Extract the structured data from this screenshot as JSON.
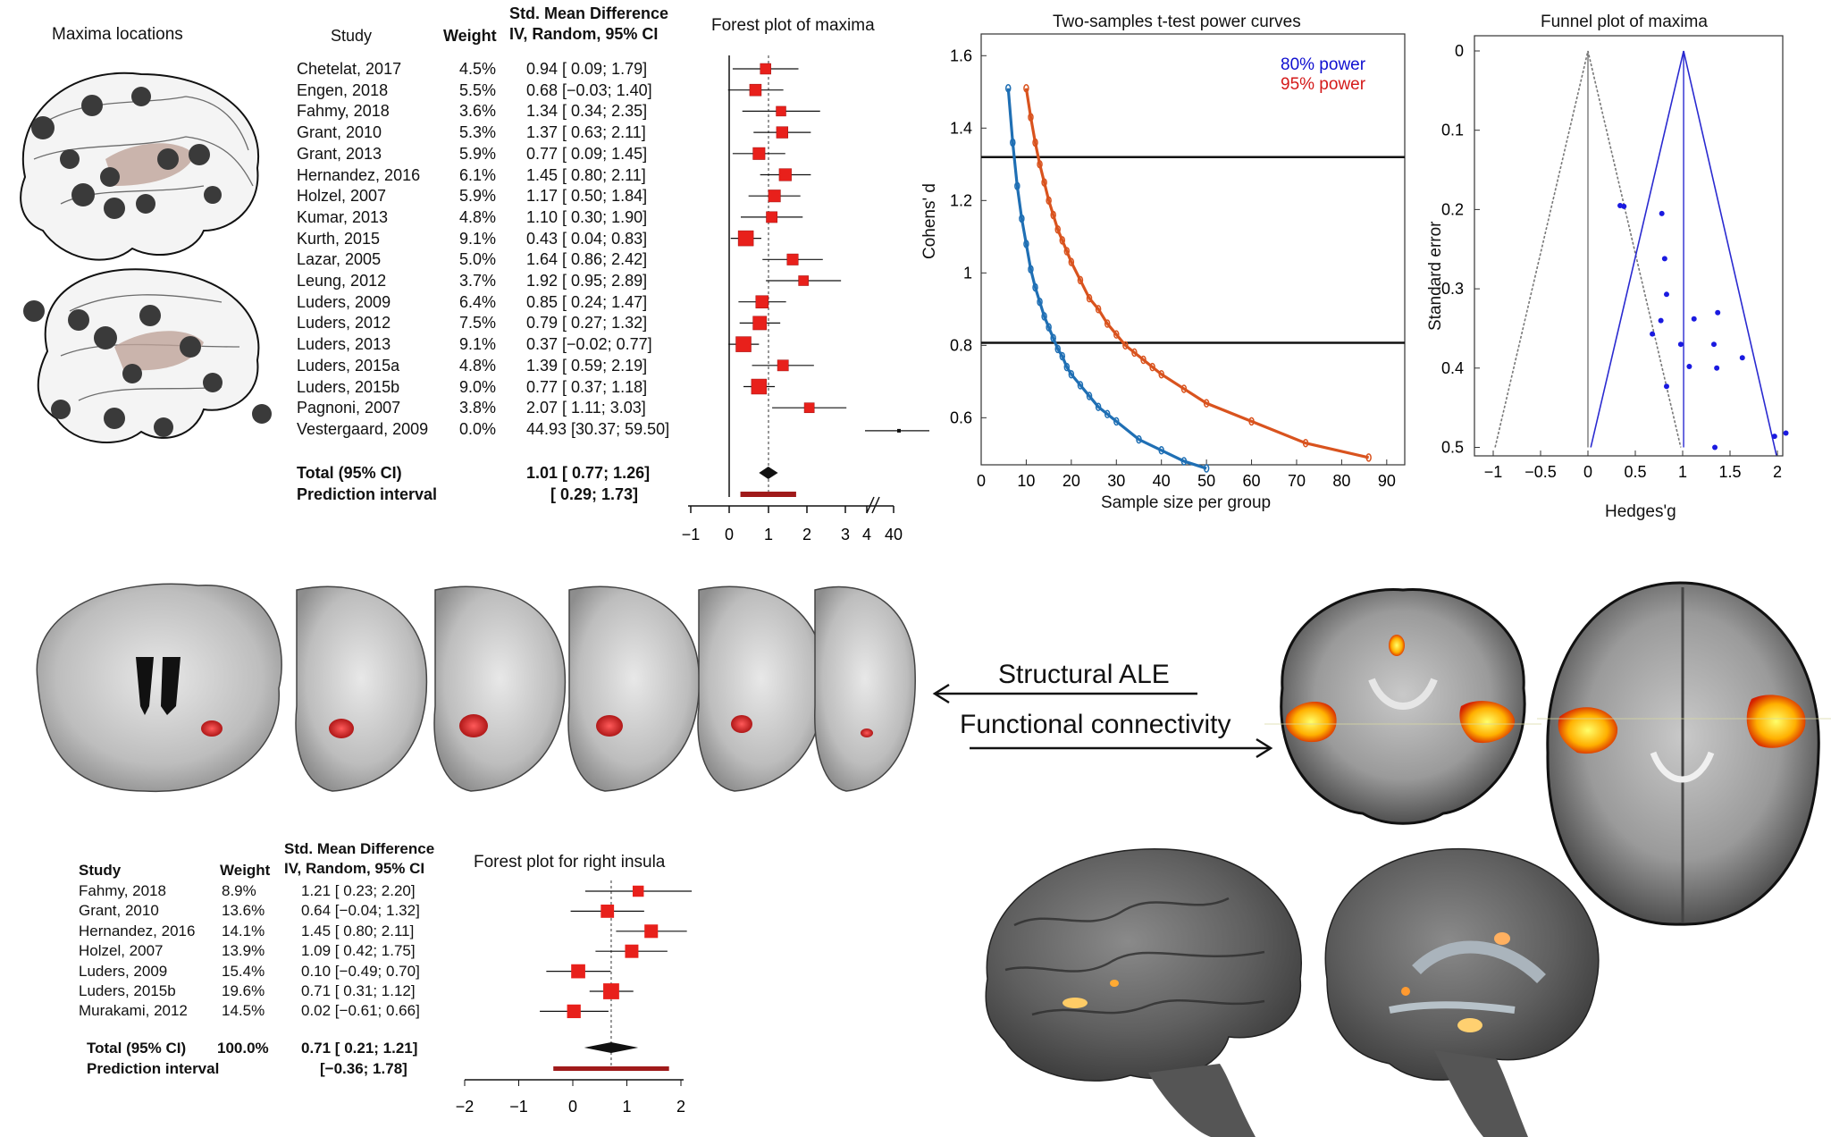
{
  "maxima_panel": {
    "title": "Maxima locations"
  },
  "forest1": {
    "title": "Forest plot of maxima",
    "headers": {
      "study": "Study",
      "weight": "Weight",
      "smd1": "Std. Mean Difference",
      "smd2": "IV, Random, 95% CI"
    },
    "rows": [
      {
        "study": "Chetelat, 2017",
        "weight": "4.5%",
        "ci": "0.94 [ 0.09; 1.79]"
      },
      {
        "study": "Engen, 2018",
        "weight": "5.5%",
        "ci": "0.68 [−0.03; 1.40]"
      },
      {
        "study": "Fahmy, 2018",
        "weight": "3.6%",
        "ci": "1.34 [ 0.34; 2.35]"
      },
      {
        "study": "Grant, 2010",
        "weight": "5.3%",
        "ci": "1.37 [ 0.63; 2.11]"
      },
      {
        "study": "Grant, 2013",
        "weight": "5.9%",
        "ci": "0.77 [ 0.09; 1.45]"
      },
      {
        "study": "Hernandez, 2016",
        "weight": "6.1%",
        "ci": "1.45 [ 0.80; 2.11]"
      },
      {
        "study": "Holzel, 2007",
        "weight": "5.9%",
        "ci": "1.17 [ 0.50; 1.84]"
      },
      {
        "study": "Kumar, 2013",
        "weight": "4.8%",
        "ci": "1.10 [ 0.30; 1.90]"
      },
      {
        "study": "Kurth, 2015",
        "weight": "9.1%",
        "ci": "0.43 [ 0.04; 0.83]"
      },
      {
        "study": "Lazar, 2005",
        "weight": "5.0%",
        "ci": "1.64 [ 0.86; 2.42]"
      },
      {
        "study": "Leung, 2012",
        "weight": "3.7%",
        "ci": "1.92 [ 0.95; 2.89]"
      },
      {
        "study": "Luders, 2009",
        "weight": "6.4%",
        "ci": "0.85 [ 0.24; 1.47]"
      },
      {
        "study": "Luders, 2012",
        "weight": "7.5%",
        "ci": "0.79 [ 0.27; 1.32]"
      },
      {
        "study": "Luders, 2013",
        "weight": "9.1%",
        "ci": "0.37 [−0.02; 0.77]"
      },
      {
        "study": "Luders, 2015a",
        "weight": "4.8%",
        "ci": "1.39 [ 0.59; 2.19]"
      },
      {
        "study": "Luders, 2015b",
        "weight": "9.0%",
        "ci": "0.77 [ 0.37; 1.18]"
      },
      {
        "study": "Pagnoni, 2007",
        "weight": "3.8%",
        "ci": "2.07 [ 1.11; 3.03]"
      },
      {
        "study": "Vestergaard, 2009",
        "weight": "0.0%",
        "ci": "44.93 [30.37; 59.50]"
      }
    ],
    "total_label": "Total (95% CI)",
    "total_ci": "1.01 [ 0.77; 1.26]",
    "pi_label": "Prediction interval",
    "pi_ci": "[ 0.29; 1.73]",
    "ticks": [
      "−1",
      "0",
      "1",
      "2",
      "3",
      "4",
      "40"
    ]
  },
  "power": {
    "title": "Two-samples t-test power curves",
    "xlabel": "Sample size per group",
    "ylabel": "Cohens' d",
    "legend80": "80% power",
    "legend95": "95% power",
    "xticks": [
      "0",
      "10",
      "20",
      "30",
      "40",
      "50",
      "60",
      "70",
      "80",
      "90"
    ],
    "yticks": [
      "0.6",
      "0.8",
      "1",
      "1.2",
      "1.4",
      "1.6"
    ]
  },
  "funnel": {
    "title": "Funnel plot of maxima",
    "xlabel": "Hedges'g",
    "ylabel": "Standard error",
    "xticks": [
      "−1",
      "−0.5",
      "0",
      "0.5",
      "1",
      "1.5",
      "2"
    ],
    "yticks": [
      "0",
      "0.1",
      "0.2",
      "0.3",
      "0.4",
      "0.5"
    ]
  },
  "arrows": {
    "structural": "Structural ALE",
    "functional": "Functional connectivity"
  },
  "forest2": {
    "title": "Forest plot for right insula",
    "headers": {
      "study": "Study",
      "weight": "Weight",
      "smd1": "Std. Mean Difference",
      "smd2": "IV, Random, 95% CI"
    },
    "rows": [
      {
        "study": "Fahmy, 2018",
        "weight": "8.9%",
        "ci": "1.21 [ 0.23; 2.20]"
      },
      {
        "study": "Grant, 2010",
        "weight": "13.6%",
        "ci": "0.64 [−0.04; 1.32]"
      },
      {
        "study": "Hernandez, 2016",
        "weight": "14.1%",
        "ci": "1.45 [ 0.80; 2.11]"
      },
      {
        "study": "Holzel, 2007",
        "weight": "13.9%",
        "ci": "1.09 [ 0.42; 1.75]"
      },
      {
        "study": "Luders, 2009",
        "weight": "15.4%",
        "ci": "0.10 [−0.49; 0.70]"
      },
      {
        "study": "Luders, 2015b",
        "weight": "19.6%",
        "ci": "0.71 [ 0.31; 1.12]"
      },
      {
        "study": "Murakami, 2012",
        "weight": "14.5%",
        "ci": "0.02 [−0.61; 0.66]"
      }
    ],
    "total_label": "Total (95% CI)",
    "total_weight": "100.0%",
    "total_ci": "0.71 [ 0.21; 1.21]",
    "pi_label": "Prediction interval",
    "pi_ci": "[−0.36; 1.78]",
    "ticks": [
      "−2",
      "−1",
      "0",
      "1",
      "2"
    ]
  },
  "chart_data": [
    {
      "type": "forest",
      "title": "Forest plot of maxima",
      "studies": [
        "Chetelat, 2017",
        "Engen, 2018",
        "Fahmy, 2018",
        "Grant, 2010",
        "Grant, 2013",
        "Hernandez, 2016",
        "Holzel, 2007",
        "Kumar, 2013",
        "Kurth, 2015",
        "Lazar, 2005",
        "Leung, 2012",
        "Luders, 2009",
        "Luders, 2012",
        "Luders, 2013",
        "Luders, 2015a",
        "Luders, 2015b",
        "Pagnoni, 2007",
        "Vestergaard, 2009"
      ],
      "estimate": [
        0.94,
        0.68,
        1.34,
        1.37,
        0.77,
        1.45,
        1.17,
        1.1,
        0.43,
        1.64,
        1.92,
        0.85,
        0.79,
        0.37,
        1.39,
        0.77,
        2.07,
        44.93
      ],
      "lower": [
        0.09,
        -0.03,
        0.34,
        0.63,
        0.09,
        0.8,
        0.5,
        0.3,
        0.04,
        0.86,
        0.95,
        0.24,
        0.27,
        -0.02,
        0.59,
        0.37,
        1.11,
        30.37
      ],
      "upper": [
        1.79,
        1.4,
        2.35,
        2.11,
        1.45,
        2.11,
        1.84,
        1.9,
        0.83,
        2.42,
        2.89,
        1.47,
        1.32,
        0.77,
        2.19,
        1.18,
        3.03,
        59.5
      ],
      "weight": [
        4.5,
        5.5,
        3.6,
        5.3,
        5.9,
        6.1,
        5.9,
        4.8,
        9.1,
        5.0,
        3.7,
        6.4,
        7.5,
        9.1,
        4.8,
        9.0,
        3.8,
        0.0
      ],
      "total": {
        "estimate": 1.01,
        "lower": 0.77,
        "upper": 1.26
      },
      "prediction_interval": [
        0.29,
        1.73
      ]
    },
    {
      "type": "line",
      "title": "Two-samples t-test power curves",
      "xlabel": "Sample size per group",
      "ylabel": "Cohens' d",
      "xlim": [
        0,
        94
      ],
      "ylim": [
        0.47,
        1.66
      ],
      "hlines": [
        1.32,
        0.807
      ],
      "series": [
        {
          "name": "80% power",
          "color": "#1f6fb4",
          "x": [
            6,
            7,
            8,
            9,
            10,
            11,
            12,
            13,
            14,
            15,
            16,
            17,
            18,
            19,
            20,
            22,
            24,
            26,
            28,
            30,
            35,
            40,
            45,
            50
          ],
          "y": [
            1.51,
            1.36,
            1.24,
            1.15,
            1.08,
            1.01,
            0.96,
            0.92,
            0.88,
            0.85,
            0.82,
            0.79,
            0.77,
            0.74,
            0.72,
            0.69,
            0.66,
            0.63,
            0.61,
            0.59,
            0.54,
            0.51,
            0.48,
            0.46
          ]
        },
        {
          "name": "95% power",
          "color": "#d9531e",
          "x": [
            10,
            11,
            12,
            13,
            14,
            15,
            16,
            17,
            18,
            19,
            20,
            22,
            24,
            26,
            28,
            30,
            32,
            34,
            36,
            38,
            40,
            45,
            50,
            60,
            72,
            86
          ],
          "y": [
            1.51,
            1.43,
            1.36,
            1.3,
            1.25,
            1.2,
            1.16,
            1.12,
            1.09,
            1.06,
            1.03,
            0.98,
            0.93,
            0.9,
            0.86,
            0.83,
            0.8,
            0.78,
            0.76,
            0.74,
            0.72,
            0.68,
            0.64,
            0.59,
            0.53,
            0.49
          ]
        }
      ]
    },
    {
      "type": "scatter",
      "title": "Funnel plot of maxima",
      "xlabel": "Hedges'g",
      "ylabel": "Standard error",
      "xlim": [
        -1.1,
        2.2
      ],
      "ylim": [
        0,
        0.51
      ],
      "y_reversed": true,
      "points": [
        {
          "x": 0.34,
          "y": 0.195
        },
        {
          "x": 0.38,
          "y": 0.196
        },
        {
          "x": 0.78,
          "y": 0.205
        },
        {
          "x": 0.81,
          "y": 0.262
        },
        {
          "x": 0.83,
          "y": 0.307
        },
        {
          "x": 0.77,
          "y": 0.34
        },
        {
          "x": 0.68,
          "y": 0.357
        },
        {
          "x": 1.12,
          "y": 0.338
        },
        {
          "x": 1.37,
          "y": 0.33
        },
        {
          "x": 1.33,
          "y": 0.37
        },
        {
          "x": 0.98,
          "y": 0.37
        },
        {
          "x": 1.63,
          "y": 0.387
        },
        {
          "x": 1.07,
          "y": 0.398
        },
        {
          "x": 1.36,
          "y": 0.4
        },
        {
          "x": 0.83,
          "y": 0.423
        },
        {
          "x": 1.97,
          "y": 0.486
        },
        {
          "x": 2.09,
          "y": 0.482
        },
        {
          "x": 1.34,
          "y": 0.5
        }
      ],
      "funnel_centers": [
        0,
        1.01
      ]
    },
    {
      "type": "forest",
      "title": "Forest plot for right insula",
      "studies": [
        "Fahmy, 2018",
        "Grant, 2010",
        "Hernandez, 2016",
        "Holzel, 2007",
        "Luders, 2009",
        "Luders, 2015b",
        "Murakami, 2012"
      ],
      "estimate": [
        1.21,
        0.64,
        1.45,
        1.09,
        0.1,
        0.71,
        0.02
      ],
      "lower": [
        0.23,
        -0.04,
        0.8,
        0.42,
        -0.49,
        0.31,
        -0.61
      ],
      "upper": [
        2.2,
        1.32,
        2.11,
        1.75,
        0.7,
        1.12,
        0.66
      ],
      "weight": [
        8.9,
        13.6,
        14.1,
        13.9,
        15.4,
        19.6,
        14.5
      ],
      "total": {
        "estimate": 0.71,
        "lower": 0.21,
        "upper": 1.21
      },
      "prediction_interval": [
        -0.36,
        1.78
      ]
    }
  ]
}
